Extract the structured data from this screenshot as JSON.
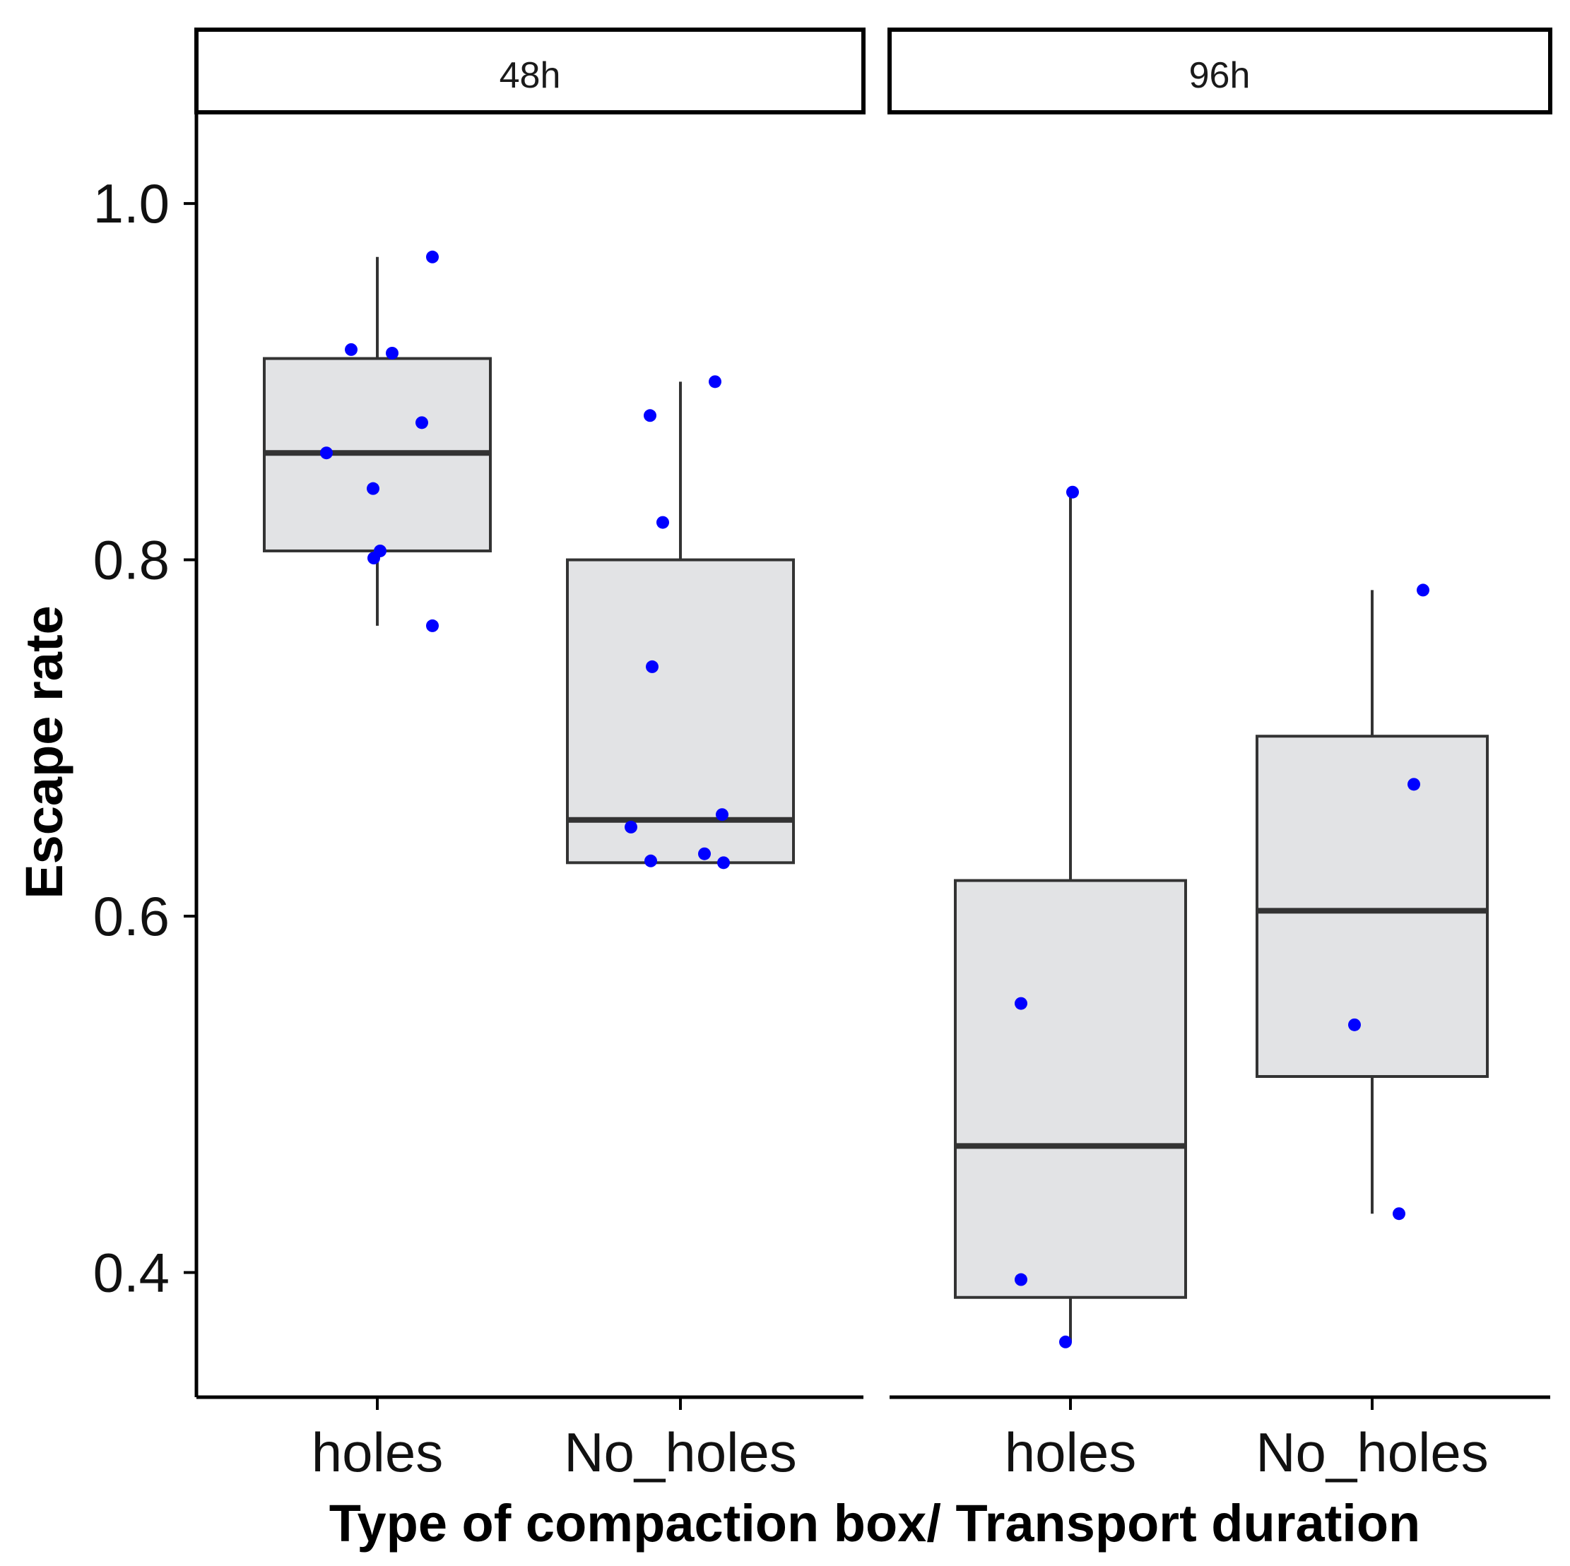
{
  "chart_data": {
    "type": "boxplot",
    "xlabel": "Type of compaction box/ Transport duration",
    "ylabel": "Escape rate",
    "ylim": [
      0.33,
      1.05
    ],
    "yticks": [
      0.4,
      0.6,
      0.8,
      1.0
    ],
    "ytick_labels": [
      "0.4",
      "0.6",
      "0.8",
      "1.0"
    ],
    "categories": [
      "holes",
      "No_holes"
    ],
    "grid": false,
    "colors": {
      "box_fill": "#e2e3e5",
      "box_line": "#333333",
      "points": "#0000ff",
      "axis": "#000000"
    },
    "panels": [
      {
        "label": "48h",
        "boxes": [
          {
            "category": "holes",
            "q1": 0.805,
            "median": 0.86,
            "q3": 0.913,
            "whisker_low": 0.763,
            "whisker_high": 0.97,
            "points": [
              0.97,
              0.918,
              0.916,
              0.877,
              0.86,
              0.84,
              0.805,
              0.801,
              0.763
            ]
          },
          {
            "category": "No_holes",
            "q1": 0.63,
            "median": 0.654,
            "q3": 0.8,
            "whisker_low": 0.63,
            "whisker_high": 0.9,
            "points": [
              0.9,
              0.881,
              0.821,
              0.74,
              0.657,
              0.65,
              0.635,
              0.631,
              0.63
            ]
          }
        ]
      },
      {
        "label": "96h",
        "boxes": [
          {
            "category": "holes",
            "q1": 0.386,
            "median": 0.471,
            "q3": 0.62,
            "whisker_low": 0.361,
            "whisker_high": 0.838,
            "points": [
              0.838,
              0.551,
              0.396,
              0.361
            ]
          },
          {
            "category": "No_holes",
            "q1": 0.51,
            "median": 0.603,
            "q3": 0.701,
            "whisker_low": 0.433,
            "whisker_high": 0.783,
            "points": [
              0.783,
              0.674,
              0.539,
              0.433
            ]
          }
        ]
      }
    ]
  }
}
